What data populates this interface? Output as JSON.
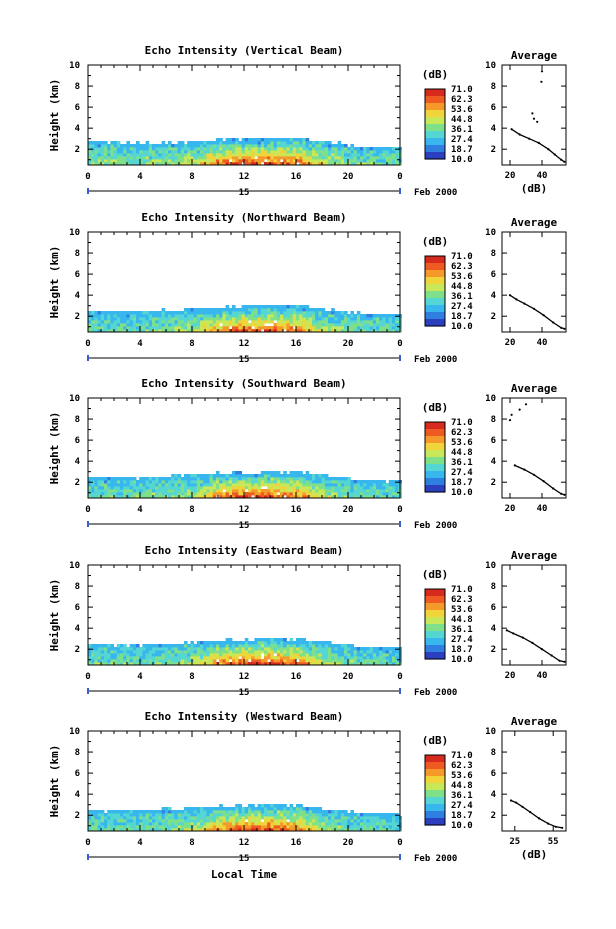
{
  "figure": {
    "xlabel_bottom": "Local Time",
    "date_label": "Feb 2000",
    "day_label": "15",
    "ylabel": "Height (km)",
    "colorbar_unit": "(dB)",
    "colorbar_ticks": [
      "71.0",
      "62.3",
      "53.6",
      "44.8",
      "36.1",
      "27.4",
      "18.7",
      "10.0"
    ],
    "x_ticks": [
      "0",
      "4",
      "8",
      "12",
      "16",
      "20",
      "0"
    ],
    "y_ticks": [
      "2",
      "4",
      "6",
      "8",
      "10"
    ],
    "avg_title": "Average",
    "avg_xlabel": "(dB)",
    "colors": {
      "axis": "#000000",
      "day_bar": "#3a5fcd",
      "scale": [
        "#2b3fbf",
        "#2f7fe0",
        "#37b7ee",
        "#55d6d2",
        "#7fe08a",
        "#c8e85a",
        "#f1d43a",
        "#f59a2a",
        "#ef5a22",
        "#d62a1e"
      ]
    }
  },
  "chart_data": [
    {
      "type": "heatmap",
      "title": "Echo Intensity (Vertical Beam)",
      "xlabel": "",
      "ylabel": "Height (km)",
      "xlim": [
        0,
        24
      ],
      "ylim": [
        0.5,
        10
      ],
      "colorbar": {
        "min": 10.0,
        "max": 71.0,
        "unit": "dB"
      },
      "echo_top_km": [
        [
          0,
          2.9
        ],
        [
          2,
          2.8
        ],
        [
          4,
          2.7
        ],
        [
          6,
          2.7
        ],
        [
          8,
          2.9
        ],
        [
          10,
          3.0
        ],
        [
          12,
          3.2
        ],
        [
          14,
          3.3
        ],
        [
          16,
          3.2
        ],
        [
          18,
          2.9
        ],
        [
          20,
          2.5
        ],
        [
          22,
          2.3
        ],
        [
          24,
          2.3
        ]
      ],
      "peak_intensity_db": [
        [
          0,
          40
        ],
        [
          4,
          38
        ],
        [
          8,
          48
        ],
        [
          10,
          66
        ],
        [
          12,
          71
        ],
        [
          14,
          70
        ],
        [
          16,
          66
        ],
        [
          18,
          50
        ],
        [
          20,
          40
        ],
        [
          24,
          36
        ]
      ],
      "average": {
        "title": "Average",
        "xlabel": "(dB)",
        "xticks": [
          "20",
          "40"
        ],
        "xlim": [
          15,
          55
        ],
        "profile": [
          [
            40,
            9.4
          ],
          [
            39.6,
            8.4
          ],
          [
            34,
            5.4
          ],
          [
            35,
            4.9
          ],
          [
            37,
            4.6
          ],
          [
            21,
            3.9
          ],
          [
            26,
            3.4
          ],
          [
            32,
            3.0
          ],
          [
            38,
            2.6
          ],
          [
            44,
            2.0
          ],
          [
            48,
            1.5
          ],
          [
            52,
            1.0
          ],
          [
            54,
            0.8
          ]
        ]
      }
    },
    {
      "type": "heatmap",
      "title": "Echo Intensity (Northward Beam)",
      "xlabel": "",
      "ylabel": "Height (km)",
      "xlim": [
        0,
        24
      ],
      "ylim": [
        0.5,
        10
      ],
      "colorbar": {
        "min": 10.0,
        "max": 71.0,
        "unit": "dB"
      },
      "echo_top_km": [
        [
          0,
          2.6
        ],
        [
          2,
          2.6
        ],
        [
          4,
          2.7
        ],
        [
          6,
          2.7
        ],
        [
          8,
          2.8
        ],
        [
          10,
          3.0
        ],
        [
          12,
          3.1
        ],
        [
          14,
          3.2
        ],
        [
          16,
          3.2
        ],
        [
          18,
          2.8
        ],
        [
          20,
          2.5
        ],
        [
          22,
          2.3
        ],
        [
          24,
          2.3
        ]
      ],
      "peak_intensity_db": [
        [
          0,
          36
        ],
        [
          4,
          36
        ],
        [
          8,
          44
        ],
        [
          10,
          64
        ],
        [
          12,
          70
        ],
        [
          14,
          70
        ],
        [
          16,
          64
        ],
        [
          18,
          46
        ],
        [
          20,
          38
        ],
        [
          24,
          34
        ]
      ],
      "average": {
        "title": "Average",
        "xlabel": "",
        "xticks": [
          "20",
          "40"
        ],
        "xlim": [
          15,
          55
        ],
        "profile": [
          [
            20,
            4.0
          ],
          [
            24,
            3.6
          ],
          [
            29,
            3.2
          ],
          [
            35,
            2.7
          ],
          [
            41,
            2.1
          ],
          [
            47,
            1.4
          ],
          [
            52,
            0.9
          ],
          [
            54,
            0.8
          ]
        ]
      }
    },
    {
      "type": "heatmap",
      "title": "Echo Intensity (Southward Beam)",
      "xlabel": "",
      "ylabel": "Height (km)",
      "xlim": [
        0,
        24
      ],
      "ylim": [
        0.5,
        10
      ],
      "colorbar": {
        "min": 10.0,
        "max": 71.0,
        "unit": "dB"
      },
      "echo_top_km": [
        [
          0,
          2.6
        ],
        [
          2,
          2.6
        ],
        [
          4,
          2.6
        ],
        [
          6,
          2.7
        ],
        [
          8,
          2.8
        ],
        [
          10,
          3.0
        ],
        [
          12,
          3.1
        ],
        [
          14,
          3.2
        ],
        [
          16,
          3.1
        ],
        [
          18,
          2.8
        ],
        [
          20,
          2.5
        ],
        [
          22,
          2.3
        ],
        [
          24,
          2.3
        ]
      ],
      "peak_intensity_db": [
        [
          0,
          36
        ],
        [
          4,
          36
        ],
        [
          8,
          44
        ],
        [
          10,
          64
        ],
        [
          12,
          70
        ],
        [
          14,
          70
        ],
        [
          16,
          64
        ],
        [
          18,
          46
        ],
        [
          20,
          38
        ],
        [
          24,
          34
        ]
      ],
      "average": {
        "title": "Average",
        "xlabel": "",
        "xticks": [
          "20",
          "40"
        ],
        "xlim": [
          15,
          55
        ],
        "profile": [
          [
            30,
            9.4
          ],
          [
            26,
            8.9
          ],
          [
            21,
            8.4
          ],
          [
            20,
            7.9
          ],
          [
            23,
            3.6
          ],
          [
            29,
            3.2
          ],
          [
            35,
            2.7
          ],
          [
            41,
            2.1
          ],
          [
            47,
            1.4
          ],
          [
            52,
            0.9
          ],
          [
            54,
            0.8
          ]
        ]
      }
    },
    {
      "type": "heatmap",
      "title": "Echo Intensity (Eastward Beam)",
      "xlabel": "",
      "ylabel": "Height (km)",
      "xlim": [
        0,
        24
      ],
      "ylim": [
        0.5,
        10
      ],
      "colorbar": {
        "min": 10.0,
        "max": 71.0,
        "unit": "dB"
      },
      "echo_top_km": [
        [
          0,
          2.7
        ],
        [
          2,
          2.6
        ],
        [
          4,
          2.6
        ],
        [
          6,
          2.7
        ],
        [
          8,
          2.8
        ],
        [
          10,
          3.0
        ],
        [
          12,
          3.1
        ],
        [
          14,
          3.2
        ],
        [
          16,
          3.1
        ],
        [
          18,
          2.8
        ],
        [
          20,
          2.5
        ],
        [
          22,
          2.3
        ],
        [
          24,
          2.3
        ]
      ],
      "peak_intensity_db": [
        [
          0,
          36
        ],
        [
          4,
          36
        ],
        [
          8,
          44
        ],
        [
          10,
          64
        ],
        [
          12,
          70
        ],
        [
          14,
          70
        ],
        [
          16,
          64
        ],
        [
          18,
          46
        ],
        [
          20,
          38
        ],
        [
          24,
          34
        ]
      ],
      "average": {
        "title": "Average",
        "xlabel": "",
        "xticks": [
          "20",
          "40"
        ],
        "xlim": [
          15,
          55
        ],
        "profile": [
          [
            18,
            3.8
          ],
          [
            22,
            3.5
          ],
          [
            28,
            3.1
          ],
          [
            34,
            2.6
          ],
          [
            40,
            2.0
          ],
          [
            46,
            1.4
          ],
          [
            51,
            0.9
          ],
          [
            54,
            0.8
          ]
        ]
      }
    },
    {
      "type": "heatmap",
      "title": "Echo Intensity (Westward Beam)",
      "xlabel": "Local Time",
      "ylabel": "Height (km)",
      "xlim": [
        0,
        24
      ],
      "ylim": [
        0.5,
        10
      ],
      "colorbar": {
        "min": 10.0,
        "max": 71.0,
        "unit": "dB"
      },
      "echo_top_km": [
        [
          0,
          2.6
        ],
        [
          2,
          2.6
        ],
        [
          4,
          2.6
        ],
        [
          6,
          2.7
        ],
        [
          8,
          2.8
        ],
        [
          10,
          3.0
        ],
        [
          12,
          3.1
        ],
        [
          14,
          3.2
        ],
        [
          16,
          3.1
        ],
        [
          18,
          2.8
        ],
        [
          20,
          2.5
        ],
        [
          22,
          2.3
        ],
        [
          24,
          2.3
        ]
      ],
      "peak_intensity_db": [
        [
          0,
          36
        ],
        [
          4,
          36
        ],
        [
          8,
          44
        ],
        [
          10,
          64
        ],
        [
          12,
          70
        ],
        [
          14,
          70
        ],
        [
          16,
          64
        ],
        [
          18,
          46
        ],
        [
          20,
          38
        ],
        [
          24,
          34
        ]
      ],
      "average": {
        "title": "Average",
        "xlabel": "(dB)",
        "xticks": [
          "25",
          "55"
        ],
        "xlim": [
          15,
          65
        ],
        "profile": [
          [
            22,
            3.4
          ],
          [
            26,
            3.2
          ],
          [
            31,
            2.8
          ],
          [
            37,
            2.3
          ],
          [
            44,
            1.7
          ],
          [
            51,
            1.2
          ],
          [
            57,
            0.9
          ],
          [
            62,
            0.8
          ]
        ]
      }
    }
  ]
}
